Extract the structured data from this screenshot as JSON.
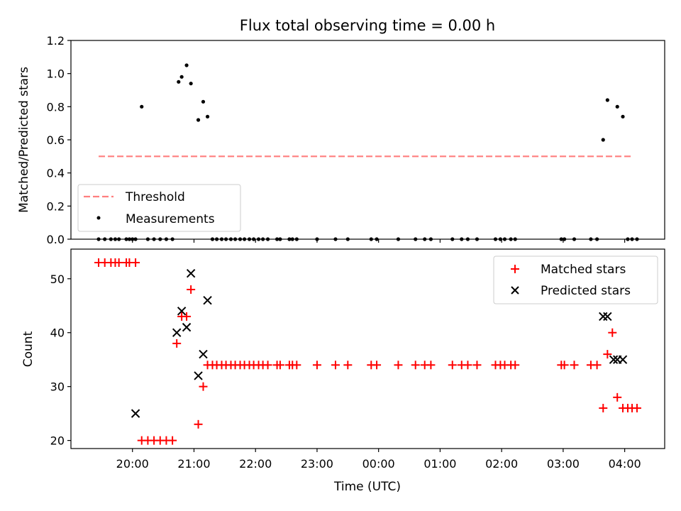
{
  "chart_data": {
    "title": "Flux total observing time = 0.00 h",
    "x_ticks": [
      "20:00",
      "21:00",
      "22:00",
      "23:00",
      "00:00",
      "01:00",
      "02:00",
      "03:00",
      "04:00"
    ],
    "xlabel": "Time (UTC)",
    "x_range_hours": [
      19.0,
      28.65
    ],
    "panels": [
      {
        "type": "scatter",
        "ylabel": "Matched/Predicted stars",
        "ylim": [
          0,
          1.2
        ],
        "y_ticks": [
          "0.0",
          "0.2",
          "0.4",
          "0.6",
          "0.8",
          "1.0",
          "1.2"
        ],
        "y_tick_values": [
          0,
          0.2,
          0.4,
          0.6,
          0.8,
          1.0,
          1.2
        ],
        "grid": false,
        "legend_position": "lower-left",
        "series": [
          {
            "name": "Threshold",
            "kind": "dashed-line",
            "color": "#ff7f7f",
            "x": [
              19.45,
              28.1
            ],
            "y": [
              0.5,
              0.5
            ]
          },
          {
            "name": "Measurements",
            "kind": "dot",
            "color": "#000000",
            "x": [
              19.45,
              19.55,
              19.65,
              19.72,
              19.78,
              19.9,
              19.95,
              20.0,
              20.05,
              20.15,
              20.25,
              20.35,
              20.45,
              20.55,
              20.65,
              20.75,
              20.8,
              20.88,
              20.95,
              21.07,
              21.15,
              21.22,
              21.3,
              21.37,
              21.45,
              21.52,
              21.6,
              21.67,
              21.75,
              21.82,
              21.9,
              21.97,
              22.05,
              22.12,
              22.2,
              22.35,
              22.4,
              22.55,
              22.6,
              22.67,
              23.0,
              23.3,
              23.5,
              23.88,
              23.97,
              24.32,
              24.6,
              24.75,
              24.85,
              25.2,
              25.35,
              25.45,
              25.6,
              25.9,
              25.98,
              26.05,
              26.15,
              26.22,
              26.97,
              27.02,
              27.18,
              27.45,
              27.55,
              27.65,
              27.72,
              27.88,
              27.97,
              28.05,
              28.12,
              28.2
            ],
            "y": [
              0,
              0,
              0,
              0,
              0,
              0,
              0,
              0,
              0,
              0.8,
              0,
              0,
              0,
              0,
              0,
              0.95,
              0.98,
              1.05,
              0.94,
              0.72,
              0.83,
              0.74,
              0,
              0,
              0,
              0,
              0,
              0,
              0,
              0,
              0,
              0,
              0,
              0,
              0,
              0,
              0,
              0,
              0,
              0,
              0,
              0,
              0,
              0,
              0,
              0,
              0,
              0,
              0,
              0,
              0,
              0,
              0,
              0,
              0,
              0,
              0,
              0,
              0,
              0,
              0,
              0,
              0,
              0.6,
              0.84,
              0.8,
              0.74,
              0,
              0,
              0
            ]
          }
        ]
      },
      {
        "type": "scatter",
        "ylabel": "Count",
        "ylim": [
          18.5,
          55.5
        ],
        "y_ticks": [
          "20",
          "30",
          "40",
          "50"
        ],
        "y_tick_values": [
          20,
          30,
          40,
          50
        ],
        "grid": false,
        "legend_position": "upper-right",
        "series": [
          {
            "name": "Matched stars",
            "kind": "plus",
            "color": "#ff0000",
            "x": [
              19.45,
              19.55,
              19.65,
              19.72,
              19.78,
              19.9,
              19.95,
              20.05,
              20.15,
              20.25,
              20.35,
              20.45,
              20.55,
              20.65,
              20.72,
              20.8,
              20.88,
              20.95,
              21.07,
              21.15,
              21.22,
              21.3,
              21.37,
              21.45,
              21.52,
              21.6,
              21.67,
              21.75,
              21.82,
              21.9,
              21.97,
              22.05,
              22.12,
              22.2,
              22.35,
              22.4,
              22.55,
              22.6,
              22.67,
              23.0,
              23.3,
              23.5,
              23.88,
              23.97,
              24.32,
              24.6,
              24.75,
              24.85,
              25.2,
              25.35,
              25.45,
              25.6,
              25.9,
              25.98,
              26.05,
              26.15,
              26.22,
              26.97,
              27.02,
              27.18,
              27.45,
              27.55,
              27.65,
              27.72,
              27.8,
              27.88,
              27.97,
              28.05,
              28.12,
              28.2
            ],
            "y": [
              53,
              53,
              53,
              53,
              53,
              53,
              53,
              53,
              20,
              20,
              20,
              20,
              20,
              20,
              38,
              43,
              43,
              48,
              23,
              30,
              34,
              34,
              34,
              34,
              34,
              34,
              34,
              34,
              34,
              34,
              34,
              34,
              34,
              34,
              34,
              34,
              34,
              34,
              34,
              34,
              34,
              34,
              34,
              34,
              34,
              34,
              34,
              34,
              34,
              34,
              34,
              34,
              34,
              34,
              34,
              34,
              34,
              34,
              34,
              34,
              34,
              34,
              26,
              36,
              40,
              28,
              26,
              26,
              26,
              26
            ]
          },
          {
            "name": "Predicted stars",
            "kind": "x",
            "color": "#000000",
            "x": [
              20.05,
              20.72,
              20.8,
              20.88,
              20.95,
              21.07,
              21.15,
              21.22,
              27.65,
              27.72,
              27.82,
              27.88,
              27.97
            ],
            "y": [
              25,
              40,
              44,
              41,
              51,
              32,
              36,
              46,
              43,
              43,
              35,
              35,
              35
            ]
          }
        ]
      }
    ]
  }
}
